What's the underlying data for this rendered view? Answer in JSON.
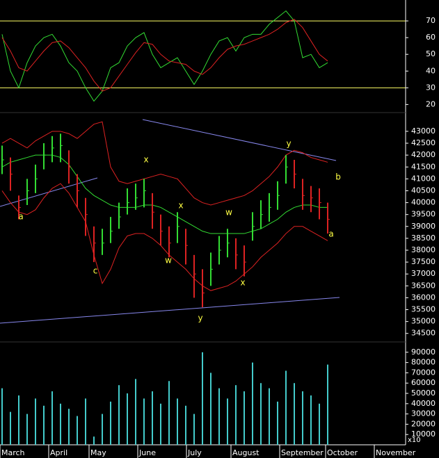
{
  "chart_data": [
    {
      "type": "line",
      "ylim": [
        16,
        82.5
      ],
      "yticks": [
        70,
        60,
        50,
        40,
        30,
        20
      ],
      "hlines": [
        70,
        30
      ],
      "hline_color": "#ffff66",
      "series": [
        {
          "color": "#33dd33",
          "values": [
            62,
            40,
            30,
            45,
            55,
            60,
            62,
            55,
            45,
            40,
            30,
            22,
            28,
            42,
            45,
            55,
            60,
            63,
            50,
            42,
            45,
            48,
            40,
            32,
            40,
            50,
            58,
            60,
            52,
            60,
            62,
            62,
            68,
            72,
            76,
            70,
            48,
            50,
            42,
            45
          ]
        },
        {
          "color": "#dd2222",
          "values": [
            60,
            52,
            42,
            40,
            46,
            52,
            57,
            58,
            54,
            48,
            42,
            34,
            28,
            30,
            37,
            44,
            51,
            57,
            56,
            50,
            46,
            45,
            44,
            40,
            38,
            42,
            48,
            53,
            55,
            56,
            58,
            60,
            62,
            65,
            69,
            71,
            66,
            58,
            50,
            46
          ]
        }
      ]
    },
    {
      "type": "ohlc",
      "ylim": [
        34200,
        43700
      ],
      "yticks": [
        43000,
        42500,
        42000,
        41500,
        41000,
        40500,
        40000,
        39500,
        39000,
        38500,
        38000,
        37500,
        37000,
        36500,
        36000,
        35500,
        35000,
        34500
      ],
      "up_color": "#33dd33",
      "down_color": "#dd2222",
      "high": [
        42400,
        41900,
        40300,
        41000,
        41600,
        42500,
        42800,
        42900,
        42200,
        41200,
        40200,
        39000,
        38900,
        39400,
        40000,
        40600,
        40800,
        41000,
        40400,
        39500,
        39000,
        39600,
        38900,
        37800,
        37200,
        37900,
        38600,
        38900,
        38500,
        38200,
        39600,
        40100,
        40400,
        40900,
        42000,
        41800,
        41000,
        40700,
        40600,
        40000
      ],
      "low": [
        41200,
        40500,
        39300,
        39900,
        40400,
        41400,
        41700,
        41700,
        40800,
        39800,
        38600,
        37500,
        37800,
        38300,
        38900,
        39500,
        39700,
        39800,
        38900,
        38200,
        37700,
        38300,
        37400,
        36000,
        35600,
        36500,
        37400,
        37700,
        37200,
        36900,
        38400,
        38900,
        39200,
        39700,
        40800,
        40600,
        39700,
        39600,
        39300,
        38700
      ],
      "close": [
        41800,
        41200,
        39800,
        40500,
        41000,
        42000,
        42300,
        42400,
        41500,
        40500,
        39500,
        38300,
        38300,
        38800,
        39400,
        40000,
        40200,
        40500,
        39600,
        38800,
        38300,
        39000,
        38200,
        37000,
        36200,
        37200,
        38000,
        38300,
        37800,
        37500,
        39000,
        39500,
        39800,
        40300,
        41500,
        41200,
        40300,
        40200,
        40000,
        39300
      ],
      "series": [
        {
          "color": "#33dd33",
          "values": [
            41500,
            41700,
            41800,
            41900,
            42000,
            42000,
            42000,
            41900,
            41600,
            41100,
            40600,
            40300,
            40100,
            39900,
            39800,
            39800,
            39800,
            39900,
            39900,
            39800,
            39600,
            39400,
            39200,
            39000,
            38800,
            38700,
            38700,
            38700,
            38700,
            38700,
            38800,
            38900,
            39100,
            39300,
            39600,
            39800,
            39900,
            39900,
            39800,
            39800
          ]
        },
        {
          "color": "#dd2222",
          "values": [
            42500,
            42700,
            42500,
            42300,
            42600,
            42800,
            43000,
            43000,
            42900,
            42700,
            43000,
            43300,
            43400,
            41500,
            40900,
            40800,
            40900,
            41000,
            41100,
            41200,
            41100,
            41000,
            40600,
            40200,
            40000,
            39900,
            40000,
            40100,
            40200,
            40300,
            40500,
            40800,
            41100,
            41500,
            42000,
            42200,
            42100,
            41900,
            41800,
            41700
          ]
        },
        {
          "color": "#dd2222",
          "values": [
            40500,
            40000,
            39600,
            39500,
            39700,
            40200,
            40600,
            40800,
            40400,
            39800,
            39200,
            37800,
            36600,
            37200,
            38100,
            38600,
            38700,
            38700,
            38500,
            38200,
            37800,
            37500,
            37200,
            36800,
            36500,
            36300,
            36400,
            36500,
            36700,
            37000,
            37300,
            37700,
            38000,
            38300,
            38700,
            39000,
            39000,
            38800,
            38600,
            38400
          ]
        }
      ],
      "annotations": [
        "a",
        "c",
        "x",
        "w",
        "x",
        "y",
        "w",
        "x",
        "y",
        "b",
        "a"
      ]
    },
    {
      "type": "bar",
      "ylim": [
        0,
        98000
      ],
      "yticks": [
        90000,
        80000,
        70000,
        60000,
        50000,
        40000,
        30000,
        20000,
        10000
      ],
      "unit_label": "x10",
      "color": "#44cccc",
      "values": [
        55000,
        32000,
        48000,
        30000,
        45000,
        38000,
        52000,
        40000,
        35000,
        28000,
        45000,
        8000,
        30000,
        42000,
        58000,
        50000,
        64000,
        45000,
        52000,
        40000,
        62000,
        45000,
        38000,
        30000,
        90000,
        70000,
        55000,
        45000,
        58000,
        52000,
        80000,
        60000,
        55000,
        42000,
        72000,
        60000,
        52000,
        48000,
        40000,
        78000
      ],
      "x_tick_labels": [
        "March",
        "April",
        "May",
        "June",
        "July",
        "August",
        "September",
        "October",
        "November"
      ]
    }
  ]
}
